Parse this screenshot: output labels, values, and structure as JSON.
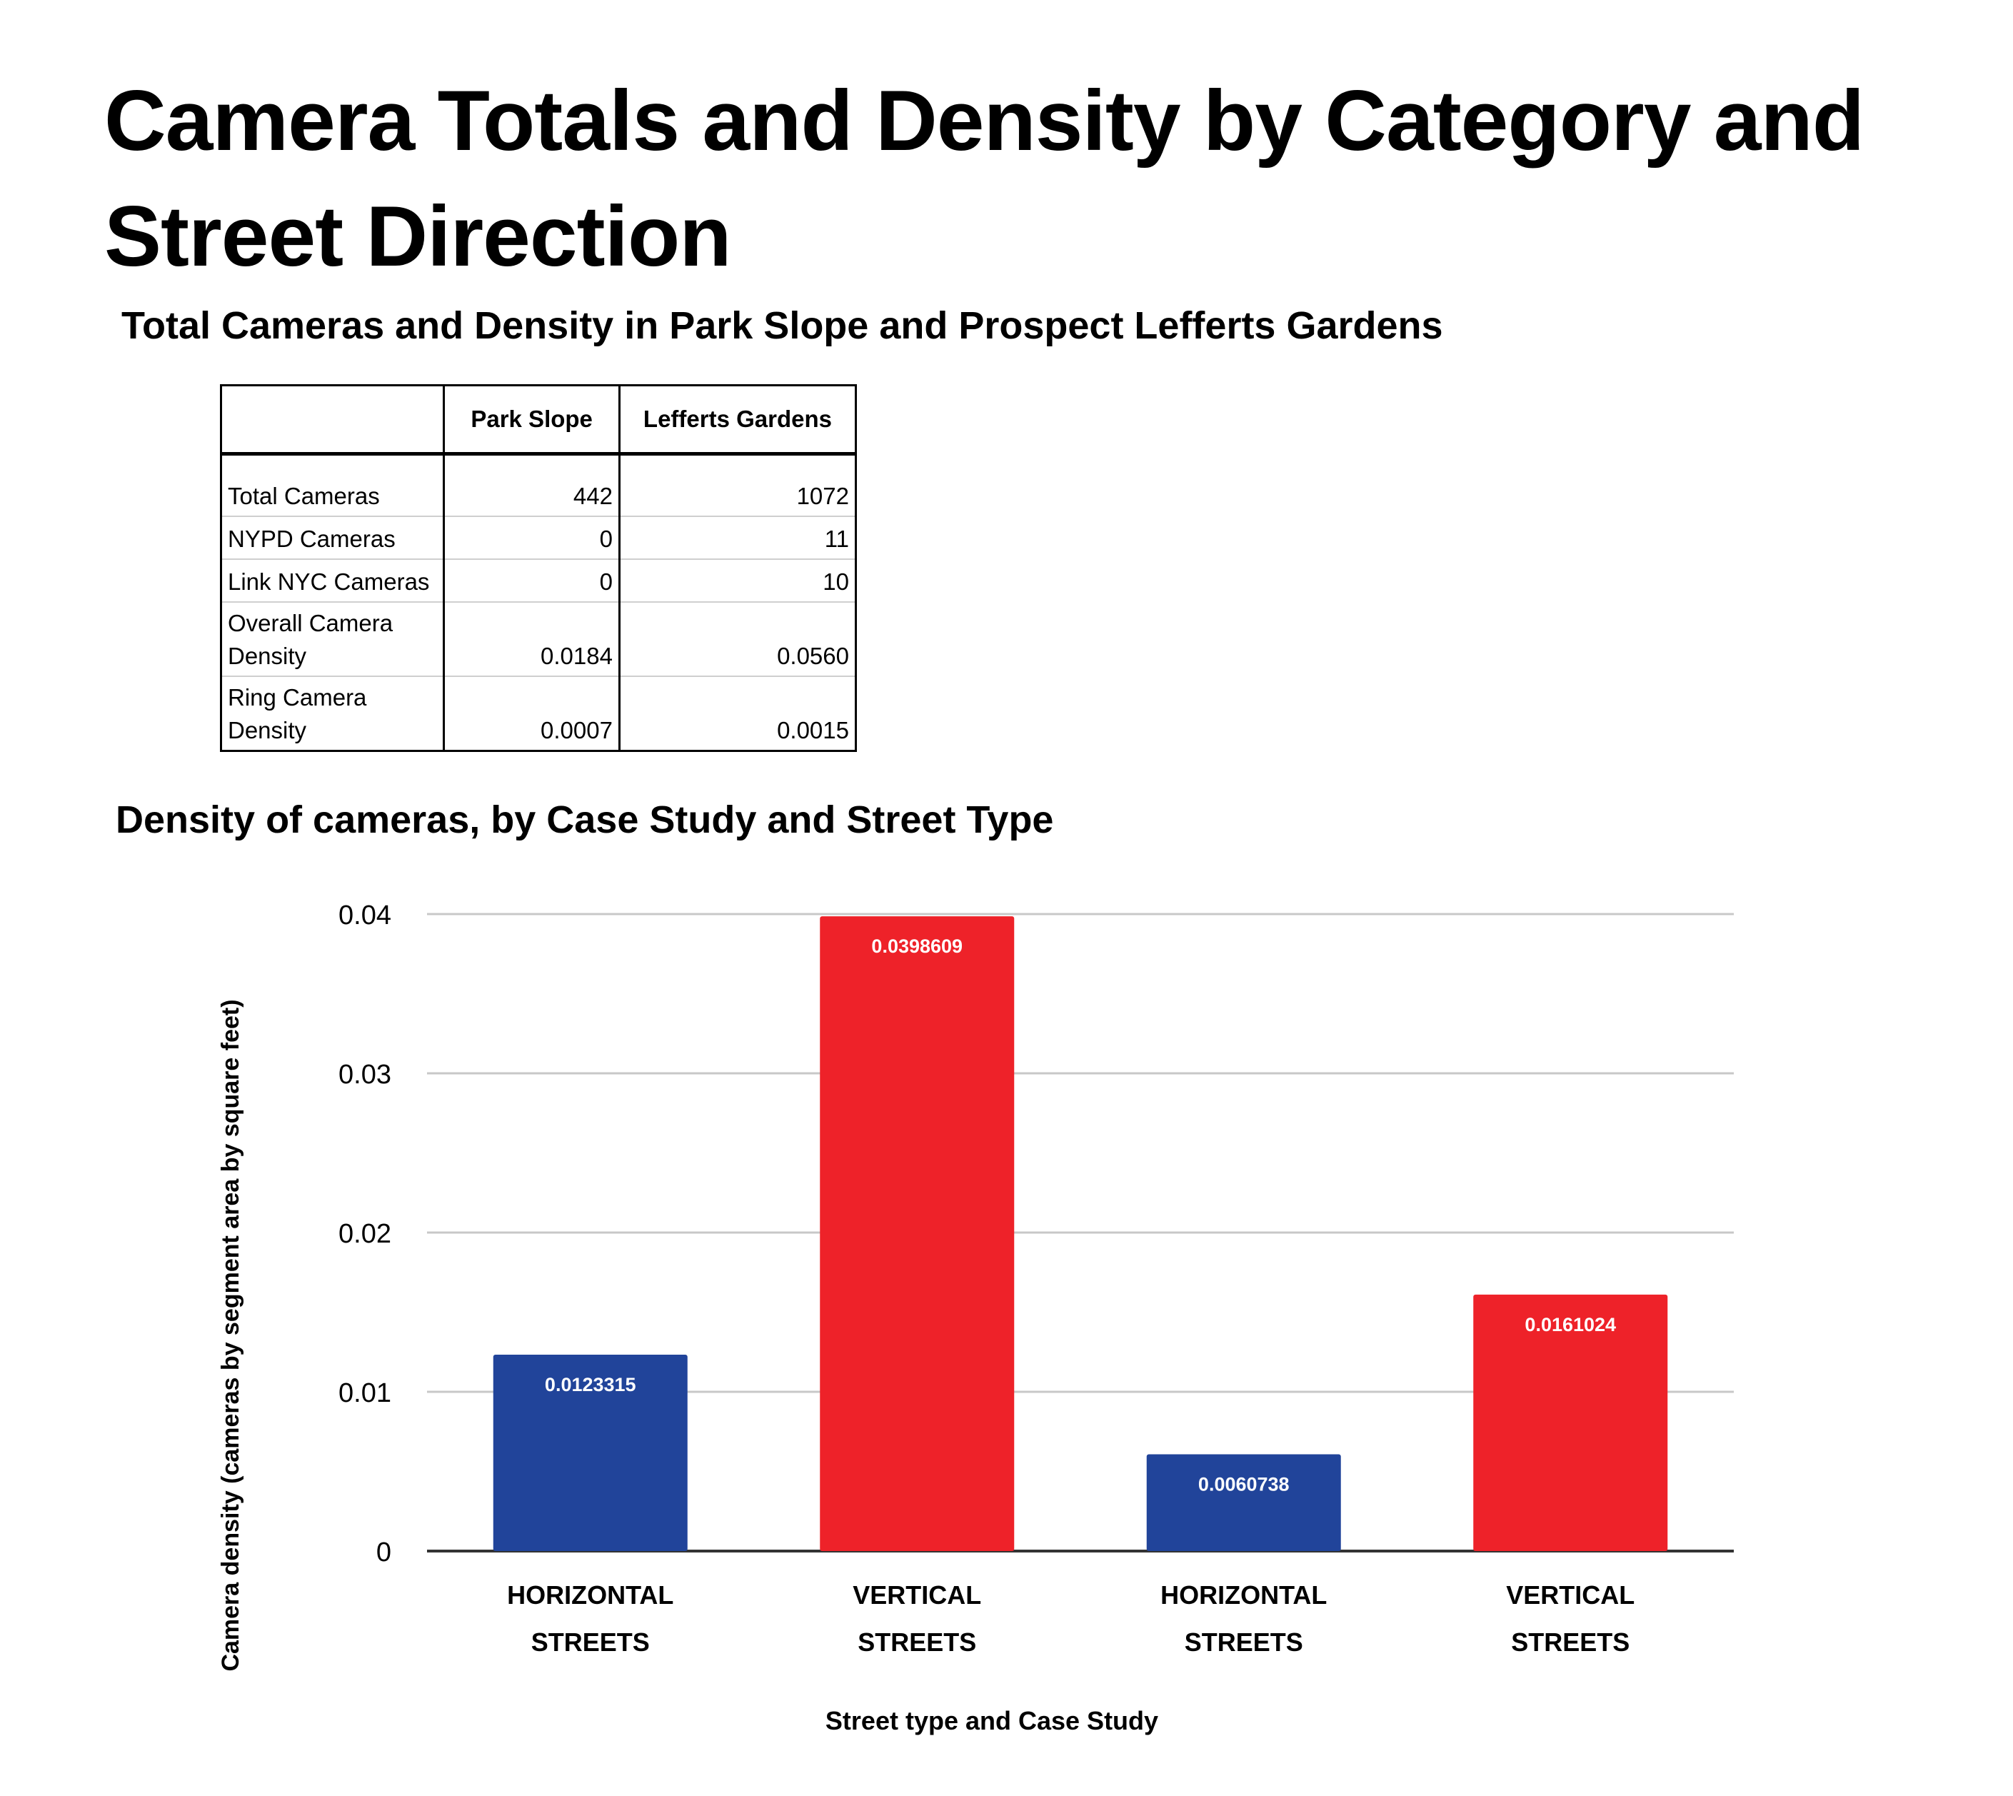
{
  "title": "Camera Totals and Density by Category and Street Direction",
  "table": {
    "title": "Total Cameras and Density in Park Slope and Prospect Lefferts Gardens",
    "columns": [
      "",
      "Park Slope",
      "Lefferts Gardens"
    ],
    "rows": [
      {
        "label": "Total Cameras",
        "park_slope": "442",
        "lefferts_gardens": "1072"
      },
      {
        "label": "NYPD Cameras",
        "park_slope": "0",
        "lefferts_gardens": "11"
      },
      {
        "label": "Link NYC Cameras",
        "park_slope": "0",
        "lefferts_gardens": "10"
      },
      {
        "label_line1": "Overall Camera",
        "label_line2": "Density",
        "park_slope": "0.0184",
        "lefferts_gardens": "0.0560"
      },
      {
        "label_line1": "Ring Camera",
        "label_line2": "Density",
        "park_slope": "0.0007",
        "lefferts_gardens": "0.0015"
      }
    ]
  },
  "chart_data": {
    "type": "bar",
    "title": "Density of cameras, by Case Study and Street Type",
    "xlabel": "Street type and Case Study",
    "ylabel": "Camera density (cameras by segment area by square feet)",
    "categories": [
      [
        "HORIZONTAL",
        "STREETS"
      ],
      [
        "VERTICAL",
        "STREETS"
      ],
      [
        "HORIZONTAL",
        "STREETS"
      ],
      [
        "VERTICAL",
        "STREETS"
      ]
    ],
    "values": [
      0.0123315,
      0.0398609,
      0.0060738,
      0.0161024
    ],
    "data_labels": [
      "0.0123315",
      "0.0398609",
      "0.0060738",
      "0.0161024"
    ],
    "bar_colors": [
      "#21449a",
      "#ee2229",
      "#21449a",
      "#ee2229"
    ],
    "ylim": [
      0,
      0.04
    ],
    "yticks": [
      "0",
      "0.01",
      "0.02",
      "0.03",
      "0.04"
    ],
    "grid": true
  }
}
